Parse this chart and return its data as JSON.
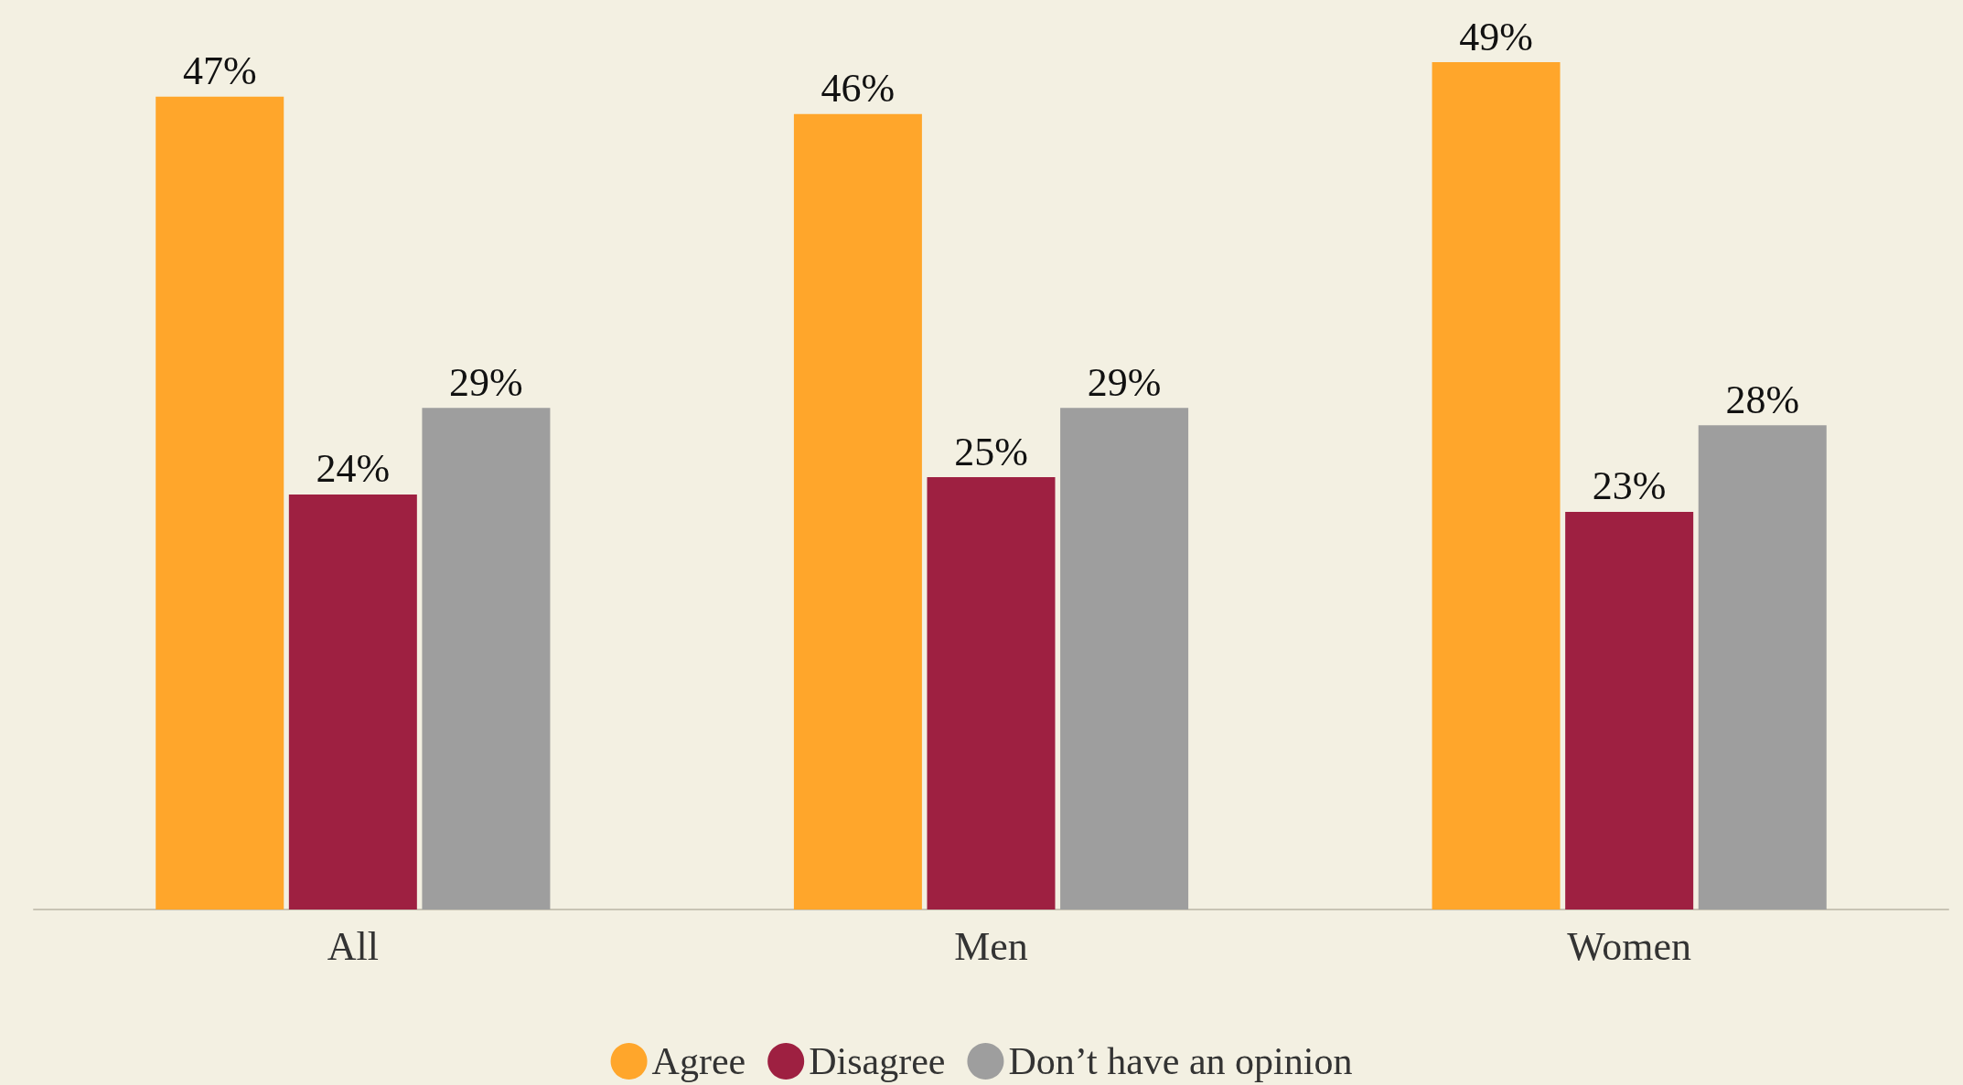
{
  "chart_data": {
    "type": "bar",
    "categories": [
      "All",
      "Men",
      "Women"
    ],
    "series": [
      {
        "name": "Agree",
        "color": "#ffa62b",
        "values": [
          47,
          46,
          49
        ],
        "value_labels": [
          "47%",
          "46%",
          "49%"
        ]
      },
      {
        "name": "Disagree",
        "color": "#9e2041",
        "values": [
          24,
          25,
          23
        ],
        "value_labels": [
          "24%",
          "25%",
          "23%"
        ]
      },
      {
        "name": "Don’t have an opinion",
        "color": "#9e9e9e",
        "values": [
          29,
          29,
          28
        ],
        "value_labels": [
          "29%",
          "29%",
          "28%"
        ]
      }
    ],
    "legend": "bottom",
    "grid": false
  }
}
